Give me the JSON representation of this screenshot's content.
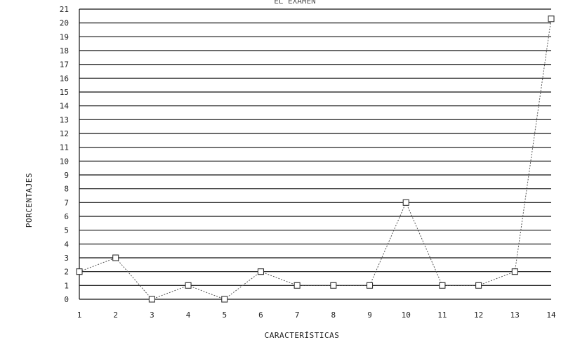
{
  "chart_data": {
    "type": "line",
    "title": "EL EXAMEN",
    "xlabel": "CARACTERÍSTICAS",
    "ylabel": "PORCENTAJES",
    "x": [
      1,
      2,
      3,
      4,
      5,
      6,
      7,
      8,
      9,
      10,
      11,
      12,
      13,
      14
    ],
    "categories": [
      "1",
      "2",
      "3",
      "4",
      "5",
      "6",
      "7",
      "8",
      "9",
      "10",
      "11",
      "12",
      "13",
      "14"
    ],
    "series": [
      {
        "values": [
          2,
          3,
          0,
          1,
          0,
          2,
          1,
          1,
          1,
          7,
          1,
          1,
          2,
          20.3
        ]
      }
    ],
    "ylim": [
      0,
      21
    ],
    "xlim": [
      1,
      14
    ],
    "yticks": [
      "0",
      "1",
      "2",
      "3",
      "4",
      "5",
      "6",
      "7",
      "8",
      "9",
      "10",
      "11",
      "12",
      "13",
      "14",
      "15",
      "16",
      "17",
      "18",
      "19",
      "20",
      "21"
    ],
    "grid": true,
    "marker": "square",
    "line_style": "dotted",
    "colors": {
      "line": "#555555",
      "grid": "#111111",
      "marker": "#333333"
    }
  }
}
